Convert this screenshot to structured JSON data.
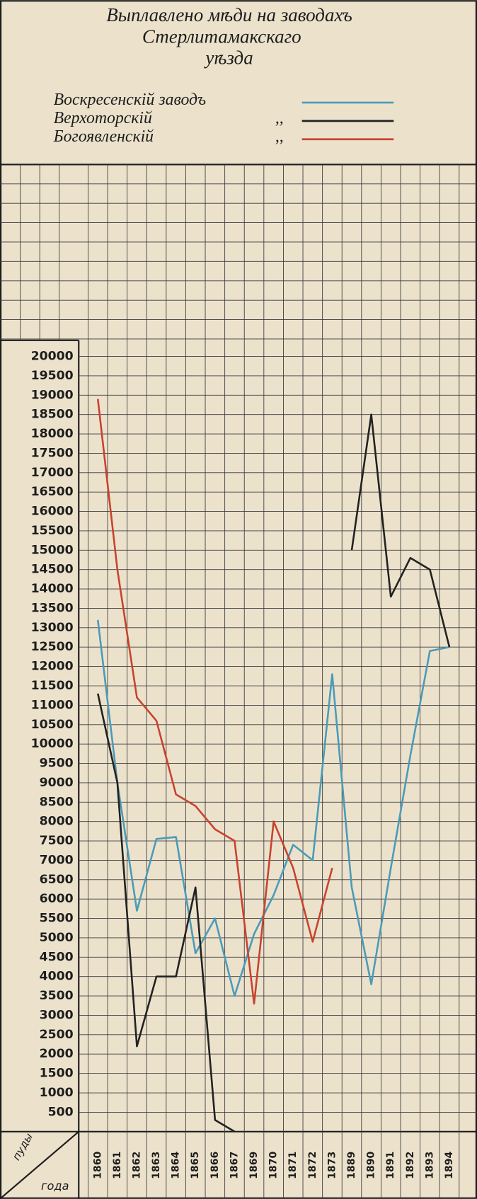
{
  "chart_data": {
    "type": "line",
    "title": "Выплавлено мѣди на заводахъ",
    "subtitle": [
      "Стерлитамакскаго",
      "уѣзда"
    ],
    "legend_ditto": ",,",
    "y_axis_label": "пуды",
    "x_axis_label": "года",
    "categories": [
      "1860",
      "1861",
      "1862",
      "1863",
      "1864",
      "1865",
      "1866",
      "1867",
      "1869",
      "1870",
      "1871",
      "1872",
      "1873",
      "1889",
      "1890",
      "1891",
      "1892",
      "1893",
      "1894"
    ],
    "ylim": [
      0,
      20000
    ],
    "yticks": [
      500,
      1000,
      1500,
      2000,
      2500,
      3000,
      3500,
      4000,
      4500,
      5000,
      5500,
      6000,
      6500,
      7000,
      7500,
      8000,
      8500,
      9000,
      9500,
      10000,
      10500,
      11000,
      11500,
      12000,
      12500,
      13000,
      13500,
      14000,
      14500,
      15000,
      15500,
      16000,
      16500,
      17000,
      17500,
      18000,
      18500,
      19000,
      19500,
      20000
    ],
    "grid": true,
    "series": [
      {
        "name": "Воскресенскій заводъ",
        "color": "#4b9bb8",
        "values": [
          13200,
          9000,
          5700,
          7550,
          7600,
          4600,
          5500,
          3500,
          5100,
          6100,
          7400,
          7000,
          11800,
          6300,
          3800,
          6800,
          9700,
          12400,
          12500
        ]
      },
      {
        "name": "Верхоторскій",
        "color": "#222222",
        "values": [
          11300,
          9000,
          2200,
          4000,
          4000,
          6300,
          300,
          0,
          null,
          null,
          null,
          null,
          null,
          15000,
          18500,
          13800,
          14800,
          14500,
          12500
        ]
      },
      {
        "name": "Богоявленскій",
        "color": "#c8432f",
        "values": [
          18900,
          14500,
          11200,
          10600,
          8700,
          8400,
          7800,
          7500,
          3300,
          8000,
          6800,
          4900,
          6800,
          null,
          null,
          null,
          null,
          null,
          null
        ]
      }
    ]
  }
}
